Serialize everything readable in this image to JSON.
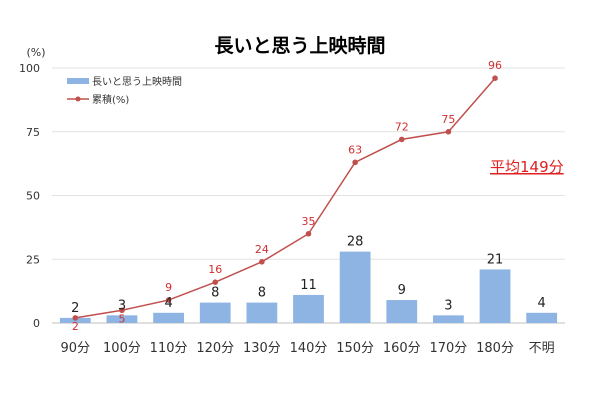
{
  "chart_data": {
    "type": "bar+line",
    "title": "長いと思う上映時間",
    "ylabel": "(%)",
    "ylim": [
      0,
      100
    ],
    "yticks": [
      0,
      25,
      50,
      75,
      100
    ],
    "grid": true,
    "legend_position": "top-left",
    "categories": [
      "90分",
      "100分",
      "110分",
      "120分",
      "130分",
      "140分",
      "150分",
      "160分",
      "170分",
      "180分",
      "不明"
    ],
    "series": [
      {
        "name": "長いと思う上映時間",
        "type": "bar",
        "color": "#8eb4e3",
        "values": [
          2,
          3,
          4,
          8,
          8,
          11,
          28,
          9,
          3,
          21,
          4
        ]
      },
      {
        "name": "累積(%)",
        "type": "line",
        "color": "#c0504d",
        "values": [
          2,
          5,
          9,
          16,
          24,
          35,
          63,
          72,
          75,
          96,
          null
        ]
      }
    ],
    "annotation": "平均149分",
    "annotation_color": "#e02020"
  }
}
